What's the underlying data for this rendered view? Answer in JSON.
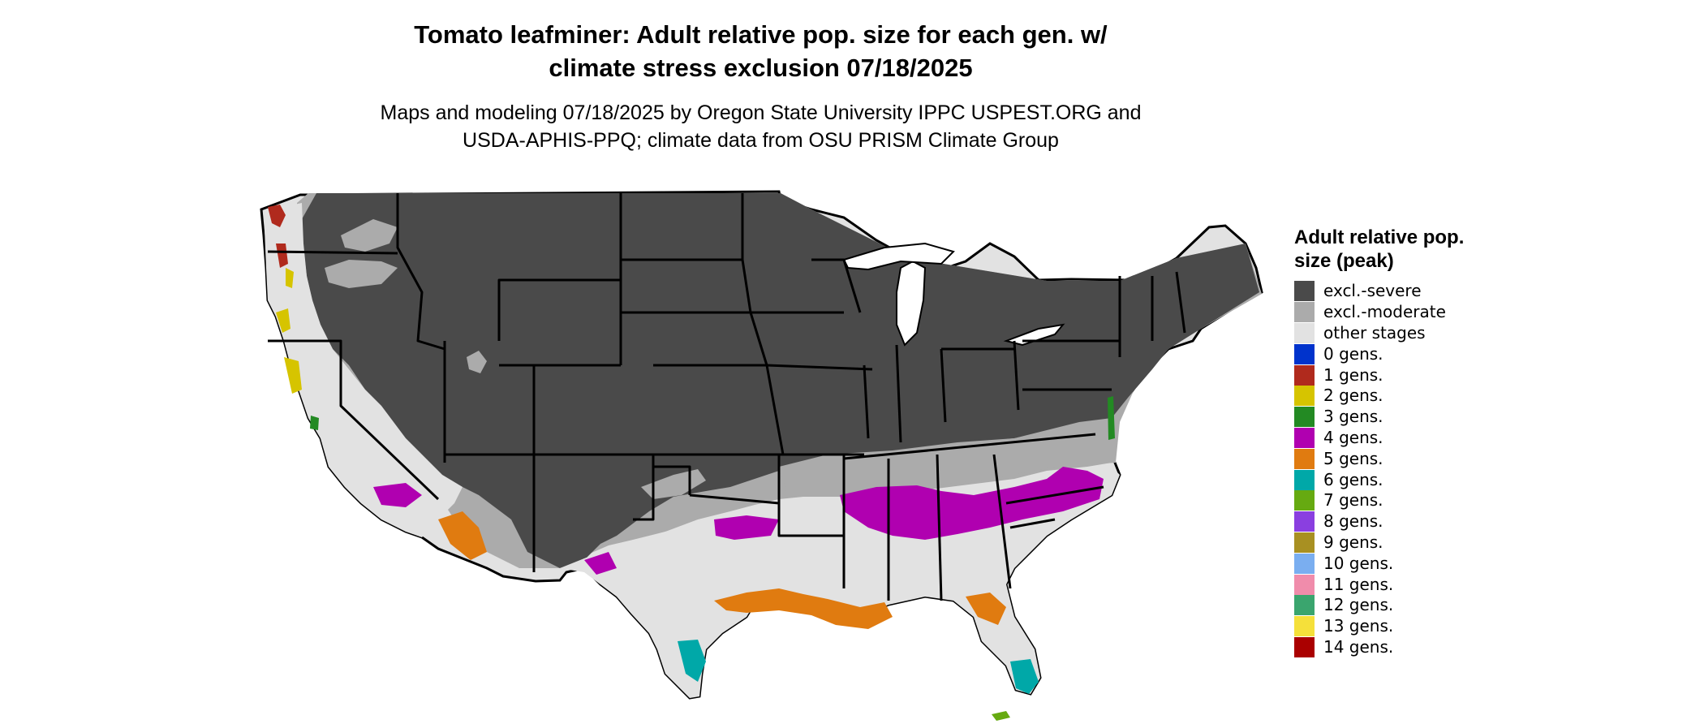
{
  "title_line1": "Tomato leafminer: Adult relative pop. size for each gen. w/",
  "title_line2": "climate stress exclusion 07/18/2025",
  "subtitle_line1": "Maps and modeling 07/18/2025 by Oregon State University IPPC USPEST.ORG and",
  "subtitle_line2": "USDA-APHIS-PPQ; climate data from OSU PRISM Climate Group",
  "legend": {
    "title": "Adult relative pop. size (peak)",
    "items": [
      {
        "label": "excl.-severe",
        "color": "#4a4a4a"
      },
      {
        "label": "excl.-moderate",
        "color": "#ababab"
      },
      {
        "label": "other stages",
        "color": "#e2e2e2"
      },
      {
        "label": "0 gens.",
        "color": "#0033cc"
      },
      {
        "label": "1 gens.",
        "color": "#b02a1d"
      },
      {
        "label": "2 gens.",
        "color": "#d6c400"
      },
      {
        "label": "3 gens.",
        "color": "#238a23"
      },
      {
        "label": "4 gens.",
        "color": "#b000b0"
      },
      {
        "label": "5 gens.",
        "color": "#e07b10"
      },
      {
        "label": "6 gens.",
        "color": "#00a8a8"
      },
      {
        "label": "7 gens.",
        "color": "#66aa11"
      },
      {
        "label": "8 gens.",
        "color": "#8a3fe0"
      },
      {
        "label": "9 gens.",
        "color": "#a89022"
      },
      {
        "label": "10 gens.",
        "color": "#7aaef0"
      },
      {
        "label": "11 gens.",
        "color": "#f08cab"
      },
      {
        "label": "12 gens.",
        "color": "#3aa56e"
      },
      {
        "label": "13 gens.",
        "color": "#f5e03a"
      },
      {
        "label": "14 gens.",
        "color": "#aa0000"
      }
    ]
  },
  "map_colors": {
    "severe": "#4a4a4a",
    "moderate": "#ababab",
    "other": "#e2e2e2",
    "gen1": "#b02a1d",
    "gen2": "#d6c400",
    "gen3": "#238a23",
    "gen4": "#b000b0",
    "gen5": "#e07b10",
    "gen6": "#00a8a8",
    "gen7": "#66aa11",
    "border": "#000000"
  }
}
